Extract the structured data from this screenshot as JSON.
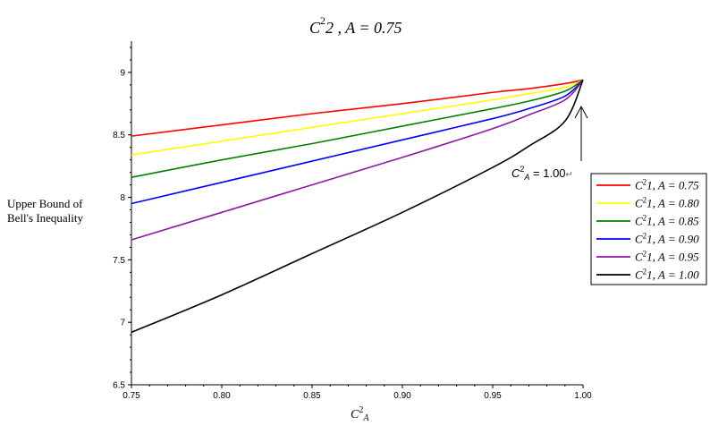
{
  "chart_data": {
    "type": "line",
    "title": "C²₂, A = 0.75",
    "title_parts": {
      "base": "C",
      "sup": "2",
      "rest": "2 , A = 0.75"
    },
    "xlabel": "C²_A",
    "xlabel_parts": {
      "base": "C",
      "sup": "2",
      "sub": "A"
    },
    "ylabel": [
      "Upper Bound of",
      "Bell's Inequality"
    ],
    "xlim": [
      0.75,
      1.0
    ],
    "ylim": [
      6.5,
      9.25
    ],
    "x_ticks": [
      "0.75",
      "0.80",
      "0.85",
      "0.90",
      "0.95",
      "1.00"
    ],
    "y_ticks": [
      "6.5",
      "7",
      "7.5",
      "8",
      "8.5",
      "9"
    ],
    "grid": false,
    "legend_position": "right",
    "x": [
      0.75,
      0.8,
      0.85,
      0.9,
      0.95,
      0.97,
      0.99,
      1.0
    ],
    "series": [
      {
        "name": "C²₁,A = 0.75",
        "label_rest": "1, A = 0.75",
        "color": "#ff0000",
        "values": [
          8.49,
          8.58,
          8.67,
          8.75,
          8.84,
          8.87,
          8.91,
          8.94
        ]
      },
      {
        "name": "C²₁,A = 0.80",
        "label_rest": "1, A = 0.80",
        "color": "#ffff00",
        "values": [
          8.34,
          8.45,
          8.56,
          8.67,
          8.78,
          8.83,
          8.88,
          8.94
        ]
      },
      {
        "name": "C²₁,A = 0.85",
        "label_rest": "1, A = 0.85",
        "color": "#008000",
        "values": [
          8.16,
          8.3,
          8.43,
          8.57,
          8.71,
          8.77,
          8.85,
          8.94
        ]
      },
      {
        "name": "C²₁,A = 0.90",
        "label_rest": "1, A = 0.90",
        "color": "#0000ff",
        "values": [
          7.95,
          8.12,
          8.29,
          8.46,
          8.63,
          8.71,
          8.81,
          8.94
        ]
      },
      {
        "name": "C²₁,A = 0.95",
        "label_rest": "1, A = 0.95",
        "color": "#8b1a9e",
        "values": [
          7.66,
          7.88,
          8.1,
          8.32,
          8.55,
          8.66,
          8.78,
          8.94
        ]
      },
      {
        "name": "C²₁,A = 1.00",
        "label_rest": "1, A = 1.00",
        "color": "#000000",
        "values": [
          6.92,
          7.22,
          7.55,
          7.88,
          8.24,
          8.41,
          8.61,
          8.94
        ]
      }
    ],
    "annotation": {
      "text": "C²_A = 1.00",
      "base": "C",
      "sup": "2",
      "sub": "A",
      "rest": " = 1.00",
      "marker": "↵"
    }
  }
}
